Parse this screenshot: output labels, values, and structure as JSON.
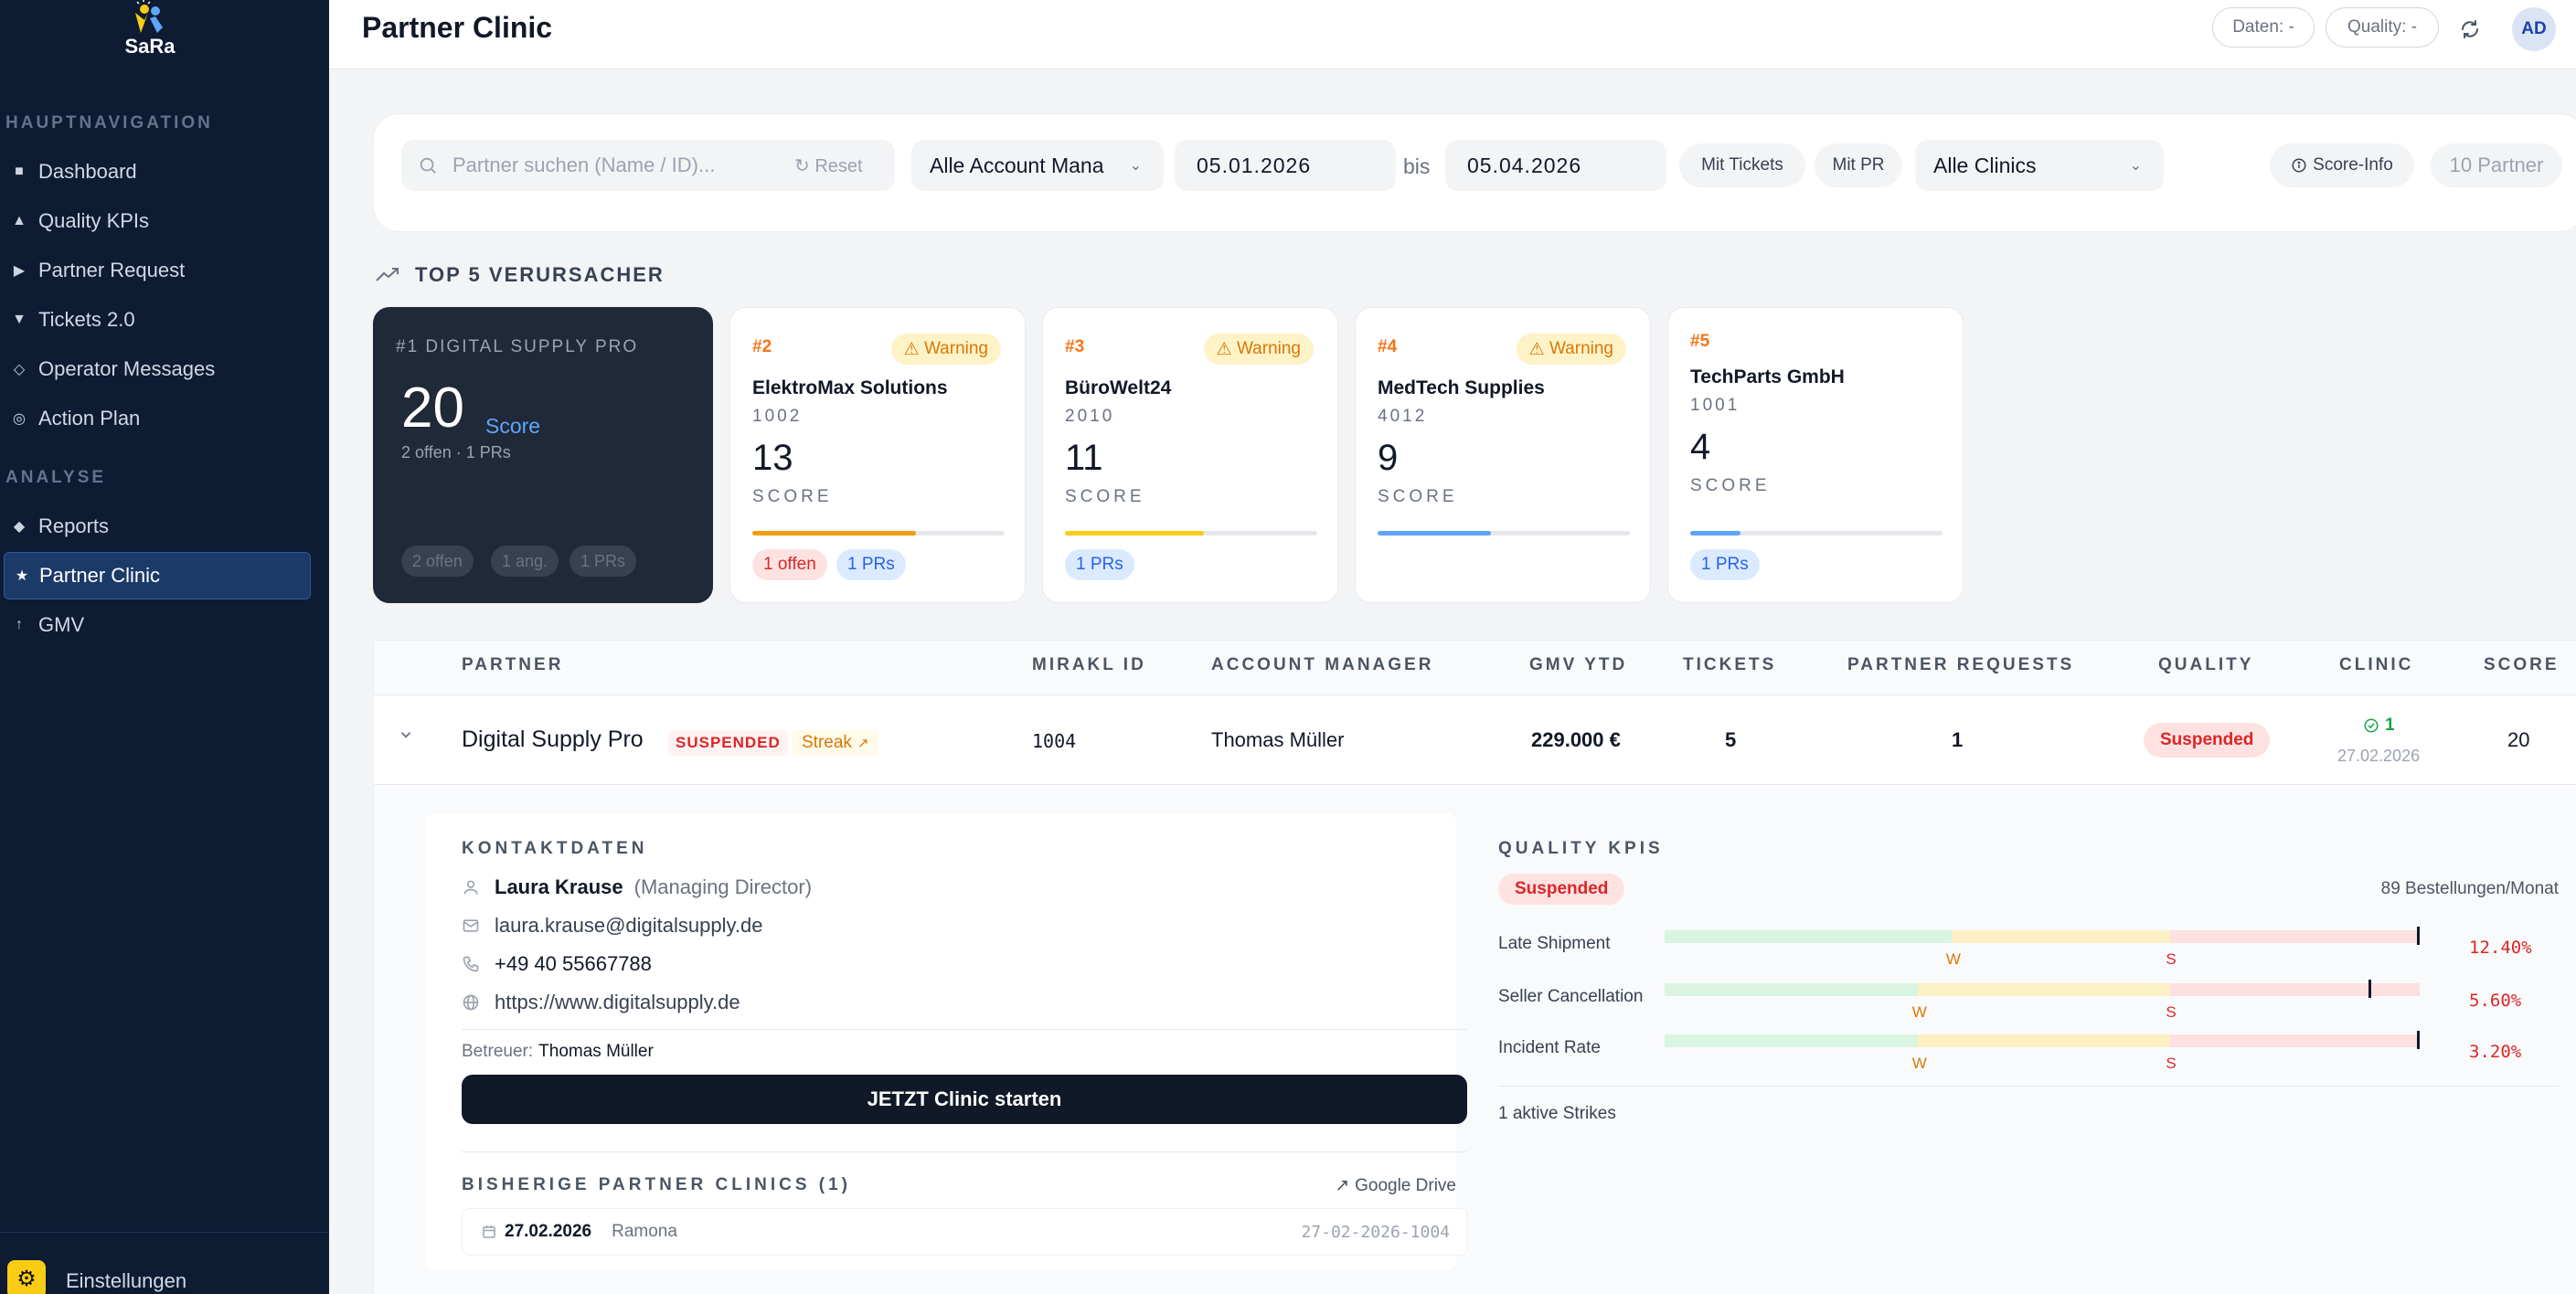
{
  "app": {
    "logo_text": "SaRa"
  },
  "sidebar": {
    "section_main": "HAUPTNAVIGATION",
    "section_analysis": "ANALYSE",
    "items": [
      {
        "label": "Dashboard",
        "icon": "■"
      },
      {
        "label": "Quality KPIs",
        "icon": "▲"
      },
      {
        "label": "Partner Request",
        "icon": "▶"
      },
      {
        "label": "Tickets 2.0",
        "icon": "▼"
      },
      {
        "label": "Operator Messages",
        "icon": "◇"
      },
      {
        "label": "Action Plan",
        "icon": "◎"
      },
      {
        "label": "Reports",
        "icon": "◆"
      },
      {
        "label": "Partner Clinic",
        "icon": "★"
      },
      {
        "label": "GMV",
        "icon": "↑"
      }
    ],
    "settings_label": "Einstellungen"
  },
  "header": {
    "title": "Partner Clinic",
    "data_filter": "Daten: -",
    "quality_filter": "Quality: -",
    "avatar": "AD"
  },
  "filters": {
    "search_placeholder": "Partner suchen (Name / ID)...",
    "reset_label": "Reset",
    "account_manager": "Alle Account Mana",
    "date_from": "05.01.2026",
    "bis": "bis",
    "date_to": "05.04.2026",
    "with_tickets": "Mit Tickets",
    "with_pr": "Mit PR",
    "clinics": "Alle Clinics",
    "score_info": "Score-Info",
    "partner_count": "10 Partner"
  },
  "top5": {
    "title": "TOP 5 VERURSACHER",
    "score_word": "Score",
    "score_caps": "SCORE",
    "first": {
      "rank_name": "#1 DIGITAL SUPPLY PRO",
      "score": "20",
      "sub": "2 offen · 1 PRs",
      "badges": [
        "2 offen",
        "1 ang.",
        "1 PRs"
      ]
    },
    "cards": [
      {
        "rank": "#2",
        "warning": "Warning",
        "name": "ElektroMax Solutions",
        "id": "1002",
        "score": "13",
        "fill": 0.65,
        "color": "#f59e0b",
        "badges": [
          "1 offen",
          "1 PRs"
        ]
      },
      {
        "rank": "#3",
        "warning": "Warning",
        "name": "BüroWelt24",
        "id": "2010",
        "score": "11",
        "fill": 0.55,
        "color": "#facc15",
        "badges": [
          "1 PRs"
        ]
      },
      {
        "rank": "#4",
        "warning": "Warning",
        "name": "MedTech Supplies",
        "id": "4012",
        "score": "9",
        "fill": 0.45,
        "color": "#60a5fa",
        "badges": []
      },
      {
        "rank": "#5",
        "name": "TechParts GmbH",
        "id": "1001",
        "score": "4",
        "fill": 0.2,
        "color": "#60a5fa",
        "badges": [
          "1 PRs"
        ]
      }
    ]
  },
  "table": {
    "headers": [
      "PARTNER",
      "MIRAKL ID",
      "ACCOUNT MANAGER",
      "GMV YTD",
      "TICKETS",
      "PARTNER REQUESTS",
      "QUALITY",
      "CLINIC",
      "SCORE"
    ],
    "row": {
      "partner": "Digital Supply Pro",
      "status_tag": "SUSPENDED",
      "streak": "Streak",
      "mirakl_id": "1004",
      "account_manager": "Thomas Müller",
      "gmv": "229.000 €",
      "tickets": "5",
      "partner_requests": "1",
      "quality": "Suspended",
      "clinic_count": "1",
      "clinic_date": "27.02.2026",
      "score": "20"
    }
  },
  "contact": {
    "title": "KONTAKTDATEN",
    "name": "Laura Krause",
    "role": "(Managing Director)",
    "email": "laura.krause@digitalsupply.de",
    "phone": "+49 40 55667788",
    "website": "https://www.digitalsupply.de",
    "betreuer_label": "Betreuer:",
    "betreuer": "Thomas Müller",
    "cta": "JETZT Clinic starten",
    "history_title": "BISHERIGE PARTNER CLINICS (1)",
    "drive": "Google Drive",
    "history": {
      "date": "27.02.2026",
      "person": "Ramona",
      "ref": "27-02-2026-1004"
    }
  },
  "quality": {
    "title": "QUALITY KPIS",
    "status": "Suspended",
    "orders": "89 Bestellungen/Monat",
    "w": "W",
    "s": "S",
    "kpis": [
      {
        "label": "Late Shipment",
        "value": "12.40%",
        "green": 0.38,
        "yellow": 0.29,
        "marker": 1.0
      },
      {
        "label": "Seller Cancellation",
        "value": "5.60%",
        "green": 0.335,
        "yellow": 0.335,
        "marker": 0.935
      },
      {
        "label": "Incident Rate",
        "value": "3.20%",
        "green": 0.335,
        "yellow": 0.335,
        "marker": 1.0
      }
    ],
    "strikes": "1 aktive Strikes"
  }
}
